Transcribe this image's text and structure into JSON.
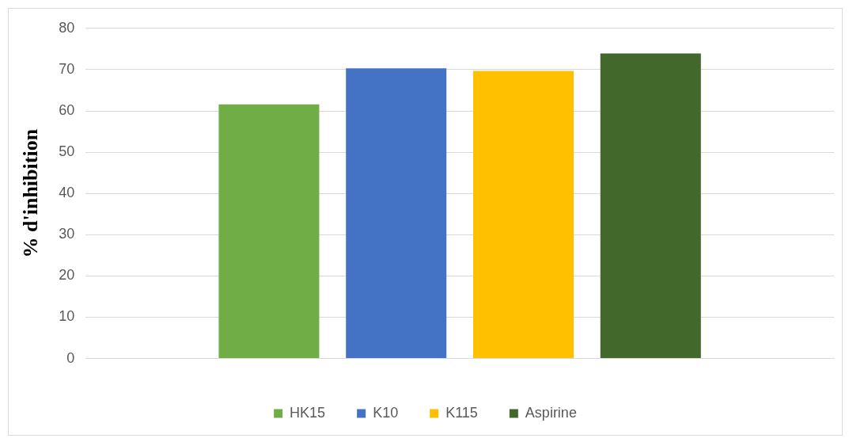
{
  "chart_data": {
    "type": "bar",
    "ylabel": "% d'inhibition",
    "categories": [
      null
    ],
    "series": [
      {
        "name": "HK15",
        "color": "#70ad47",
        "values": [
          61.6
        ]
      },
      {
        "name": "K10",
        "color": "#4472c4",
        "values": [
          70.3
        ]
      },
      {
        "name": "K115",
        "color": "#ffc000",
        "values": [
          69.7
        ]
      },
      {
        "name": "Aspirine",
        "color": "#43682b",
        "values": [
          73.9
        ]
      }
    ],
    "ylim": [
      0,
      80
    ],
    "yticks": [
      0,
      10,
      20,
      30,
      40,
      50,
      60,
      70,
      80
    ],
    "grid": "y",
    "legend": "bottom"
  }
}
